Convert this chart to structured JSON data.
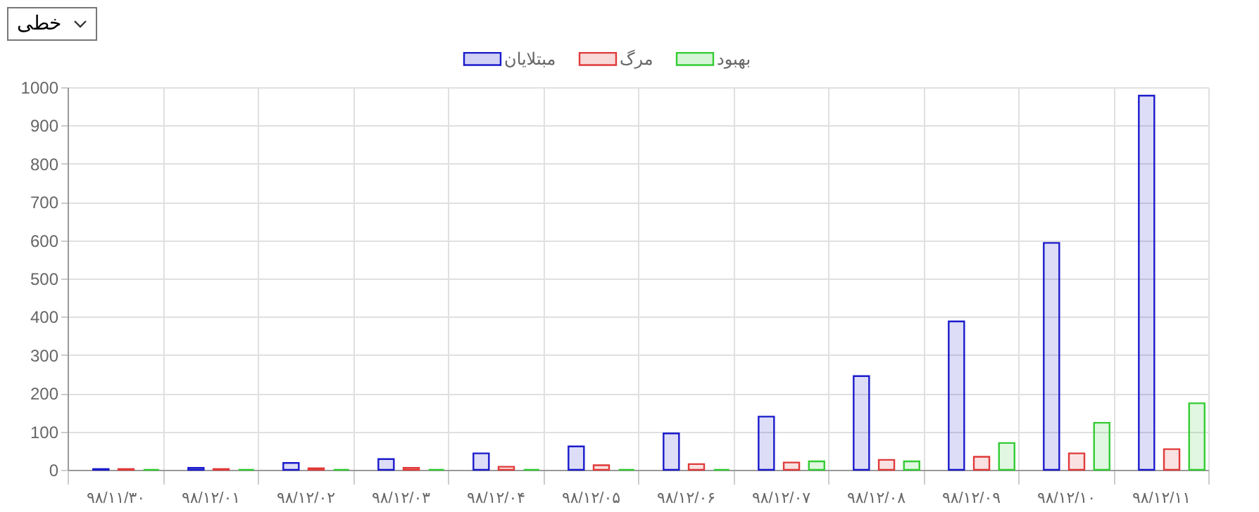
{
  "chart_data": {
    "type": "bar",
    "annotations": [
      "خطی"
    ],
    "categories": [
      "۹۸/۱۱/۳۰",
      "۹۸/۱۲/۰۱",
      "۹۸/۱۲/۰۲",
      "۹۸/۱۲/۰۳",
      "۹۸/۱۲/۰۴",
      "۹۸/۱۲/۰۵",
      "۹۸/۱۲/۰۶",
      "۹۸/۱۲/۰۷",
      "۹۸/۱۲/۰۸",
      "۹۸/۱۲/۰۹",
      "۹۸/۱۲/۱۰",
      "۹۸/۱۲/۱۱"
    ],
    "series": [
      {
        "name": "مبتلایان",
        "color": "#1a1acc",
        "values": [
          2,
          5,
          18,
          28,
          43,
          61,
          95,
          139,
          245,
          388,
          593,
          978
        ]
      },
      {
        "name": "مرگ",
        "color": "#e03a3a",
        "values": [
          2,
          2,
          4,
          5,
          8,
          12,
          15,
          19,
          26,
          34,
          43,
          54
        ]
      },
      {
        "name": "بهبود",
        "color": "#33cc33",
        "values": [
          0,
          0,
          0,
          0,
          0,
          0,
          0,
          22,
          22,
          70,
          123,
          174
        ]
      }
    ],
    "ylim": [
      0,
      1000
    ],
    "yticks": [
      0,
      100,
      200,
      300,
      400,
      500,
      600,
      700,
      800,
      900,
      {
        "value": 1000,
        "label": "1000"
      }
    ],
    "grid": true,
    "legend": "top"
  }
}
